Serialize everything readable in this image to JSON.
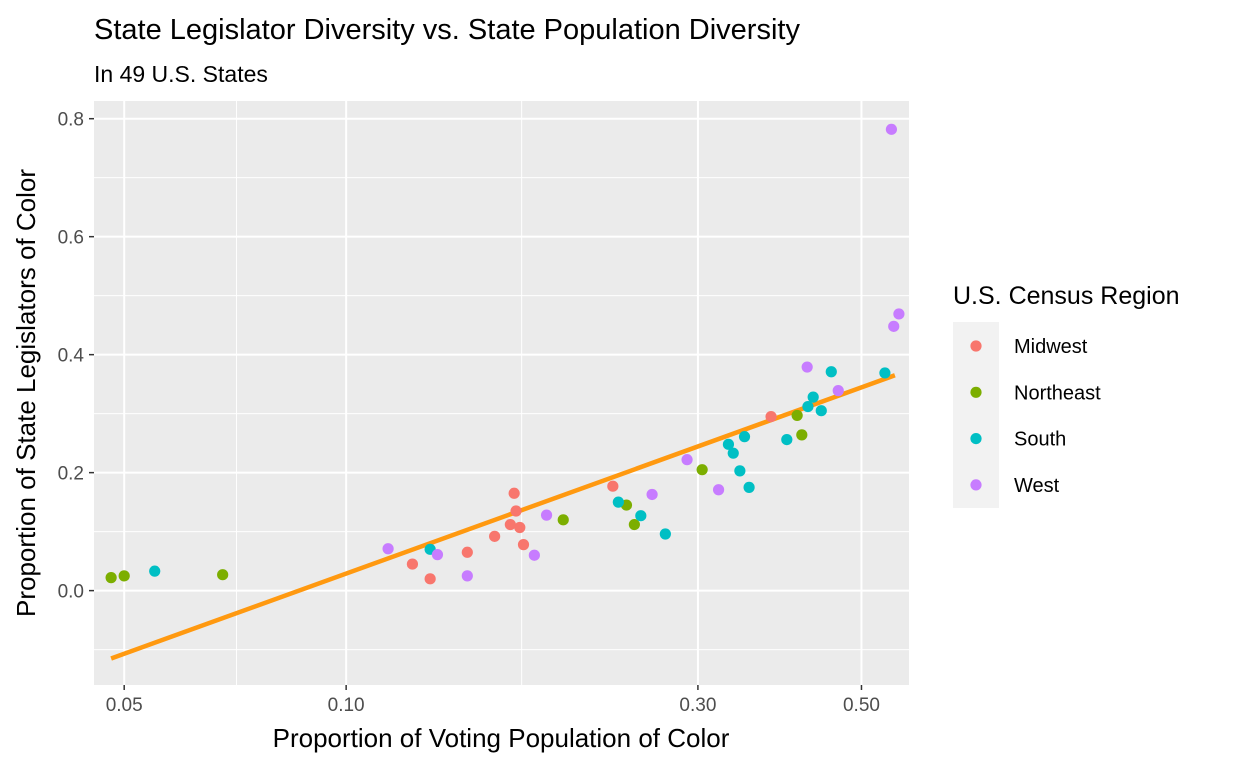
{
  "chart_data": {
    "type": "scatter",
    "title": "State Legislator Diversity vs. State Population Diversity",
    "subtitle": "In 49 U.S. States",
    "xlabel": "Proportion of Voting Population of Color",
    "ylabel": "Proportion of State Legislators of Color",
    "x_scale": "log10",
    "xlim": [
      0.0455,
      0.58
    ],
    "ylim": [
      -0.16,
      0.83
    ],
    "x_ticks": [
      0.05,
      0.1,
      0.3,
      0.5
    ],
    "x_tick_labels": [
      "0.05",
      "0.10",
      "0.30",
      "0.50"
    ],
    "x_minor_breaks": [
      0.071,
      0.173
    ],
    "y_ticks": [
      0.0,
      0.2,
      0.4,
      0.6,
      0.8
    ],
    "y_tick_labels": [
      "0.0",
      "0.2",
      "0.4",
      "0.6",
      "0.8"
    ],
    "grid": true,
    "legend": {
      "title": "U.S. Census Region",
      "placement": "right",
      "entries": [
        {
          "name": "Midwest",
          "color": "#F8766D"
        },
        {
          "name": "Northeast",
          "color": "#7CAE00"
        },
        {
          "name": "South",
          "color": "#00BFC4"
        },
        {
          "name": "West",
          "color": "#C77CFF"
        }
      ]
    },
    "trend_line": {
      "color": "#FF9910",
      "x": [
        0.048,
        0.555
      ],
      "y": [
        -0.115,
        0.365
      ]
    },
    "series": [
      {
        "name": "Midwest",
        "color": "#F8766D",
        "points": [
          [
            0.123,
            0.045
          ],
          [
            0.13,
            0.02
          ],
          [
            0.146,
            0.065
          ],
          [
            0.159,
            0.092
          ],
          [
            0.167,
            0.112
          ],
          [
            0.17,
            0.135
          ],
          [
            0.169,
            0.165
          ],
          [
            0.172,
            0.107
          ],
          [
            0.174,
            0.078
          ],
          [
            0.23,
            0.177
          ],
          [
            0.377,
            0.295
          ]
        ]
      },
      {
        "name": "Northeast",
        "color": "#7CAE00",
        "points": [
          [
            0.048,
            0.022
          ],
          [
            0.05,
            0.025
          ],
          [
            0.068,
            0.027
          ],
          [
            0.197,
            0.12
          ],
          [
            0.24,
            0.145
          ],
          [
            0.246,
            0.112
          ],
          [
            0.304,
            0.205
          ],
          [
            0.409,
            0.297
          ],
          [
            0.415,
            0.264
          ]
        ]
      },
      {
        "name": "South",
        "color": "#00BFC4",
        "points": [
          [
            0.055,
            0.033
          ],
          [
            0.13,
            0.07
          ],
          [
            0.234,
            0.15
          ],
          [
            0.251,
            0.127
          ],
          [
            0.271,
            0.096
          ],
          [
            0.33,
            0.248
          ],
          [
            0.335,
            0.233
          ],
          [
            0.342,
            0.203
          ],
          [
            0.347,
            0.261
          ],
          [
            0.352,
            0.175
          ],
          [
            0.396,
            0.256
          ],
          [
            0.423,
            0.312
          ],
          [
            0.43,
            0.328
          ],
          [
            0.441,
            0.305
          ],
          [
            0.455,
            0.371
          ],
          [
            0.538,
            0.369
          ]
        ]
      },
      {
        "name": "West",
        "color": "#C77CFF",
        "points": [
          [
            0.114,
            0.071
          ],
          [
            0.133,
            0.061
          ],
          [
            0.146,
            0.025
          ],
          [
            0.18,
            0.06
          ],
          [
            0.187,
            0.128
          ],
          [
            0.26,
            0.163
          ],
          [
            0.29,
            0.222
          ],
          [
            0.32,
            0.171
          ],
          [
            0.422,
            0.379
          ],
          [
            0.465,
            0.339
          ],
          [
            0.549,
            0.782
          ],
          [
            0.553,
            0.448
          ],
          [
            0.562,
            0.469
          ]
        ]
      }
    ]
  }
}
